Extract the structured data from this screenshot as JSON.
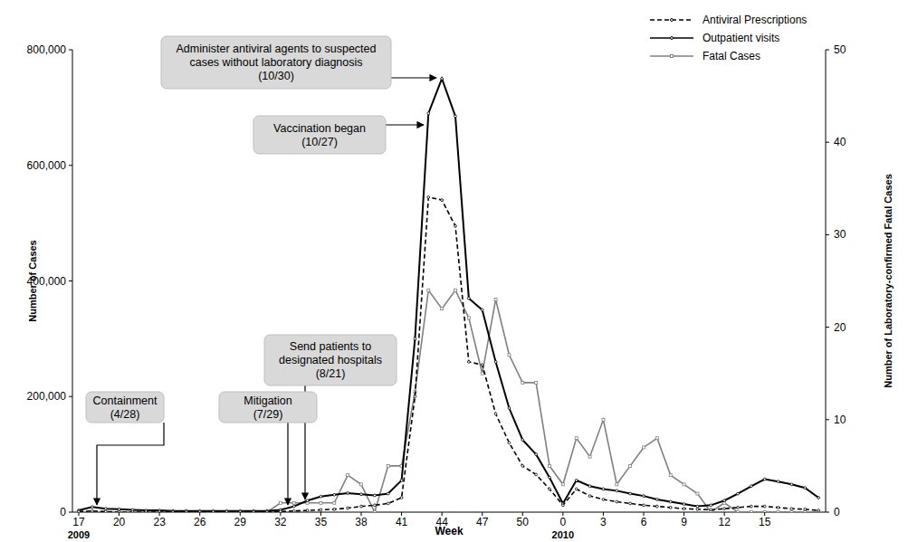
{
  "chart_data": {
    "type": "line",
    "x_label": "Week",
    "y_label": "Number of Cases",
    "y2_label": "Number of Laboratory-confirmed Fatal Cases",
    "legend": "upper right",
    "grid": false,
    "categories": [
      "17",
      null,
      null,
      "20",
      null,
      null,
      "23",
      null,
      null,
      "26",
      null,
      null,
      "29",
      null,
      null,
      "32",
      null,
      null,
      "35",
      null,
      null,
      "38",
      null,
      null,
      "41",
      null,
      null,
      "44",
      null,
      null,
      "47",
      null,
      null,
      "50",
      null,
      null,
      "0",
      null,
      null,
      "3",
      null,
      null,
      "6",
      null,
      null,
      "9",
      null,
      null,
      "12",
      null,
      null,
      "15",
      null,
      null,
      null,
      null
    ],
    "year_labels": [
      {
        "category": "17",
        "label": "2009"
      },
      {
        "category": "0",
        "label": "2010"
      }
    ],
    "ylim": [
      0,
      800000
    ],
    "yticks": [
      0,
      {
        "value": 200000,
        "label": "200,000"
      },
      {
        "value": 400000,
        "label": "400,000"
      },
      {
        "value": 600000,
        "label": "600,000"
      },
      {
        "value": 800000,
        "label": "800,000"
      }
    ],
    "y2lim": [
      0,
      50
    ],
    "y2ticks": [
      0,
      10,
      20,
      30,
      40,
      50
    ],
    "series": [
      {
        "name": "Antiviral Prescriptions",
        "color": "#000000",
        "line_style": "dashed",
        "marker": "circle",
        "values": [
          1000,
          2000,
          1000,
          0,
          0,
          0,
          0,
          0,
          0,
          0,
          0,
          0,
          0,
          0,
          0,
          1000,
          2000,
          3000,
          4000,
          5000,
          7000,
          10000,
          12000,
          15000,
          25000,
          200000,
          545000,
          540000,
          495000,
          260000,
          255000,
          170000,
          120000,
          80000,
          65000,
          40000,
          12000,
          40000,
          28000,
          22000,
          18000,
          15000,
          12000,
          10000,
          8000,
          6000,
          5000,
          4000,
          6000,
          8000,
          10000,
          10000,
          8000,
          6000,
          5000,
          3000
        ]
      },
      {
        "name": "Outpatient visits",
        "color": "#000000",
        "line_style": "solid",
        "marker": "circle",
        "values": [
          3000,
          9000,
          6000,
          5000,
          4000,
          3000,
          3000,
          2000,
          2000,
          2000,
          2000,
          2000,
          2000,
          2000,
          2000,
          4000,
          10000,
          20000,
          27000,
          30000,
          33000,
          31000,
          29000,
          32000,
          55000,
          300000,
          690000,
          750000,
          685000,
          370000,
          350000,
          260000,
          180000,
          125000,
          100000,
          60000,
          15000,
          55000,
          45000,
          40000,
          37000,
          32000,
          28000,
          22000,
          18000,
          14000,
          10000,
          12000,
          20000,
          32000,
          45000,
          57000,
          53000,
          48000,
          42000,
          25000
        ]
      },
      {
        "name": "Fatal Cases",
        "color": "#808080",
        "line_style": "solid",
        "marker": "square",
        "axis": "y2",
        "values": [
          0,
          0,
          0,
          0,
          0,
          0,
          0,
          0,
          0,
          0,
          0,
          0,
          0,
          0,
          0,
          1,
          1,
          1,
          1,
          1,
          4,
          3,
          0,
          5,
          5,
          13,
          24,
          22,
          24,
          21,
          15,
          23,
          17,
          14,
          14,
          5,
          3,
          8,
          6,
          10,
          3,
          5,
          7,
          8,
          4,
          3,
          2,
          0,
          1,
          0,
          0,
          0,
          0,
          0,
          0,
          0
        ]
      }
    ],
    "annotations": [
      {
        "lines": [
          "Administer antiviral agents to suspected",
          "cases without laboratory diagnosis",
          "(10/30)"
        ]
      },
      {
        "lines": [
          "Vaccination began",
          "(10/27)"
        ]
      },
      {
        "lines": [
          "Send patients to",
          "designated hospitals",
          "(8/21)"
        ]
      },
      {
        "lines": [
          "Containment",
          "(4/28)"
        ]
      },
      {
        "lines": [
          "Mitigation",
          "(7/29)"
        ]
      }
    ]
  }
}
